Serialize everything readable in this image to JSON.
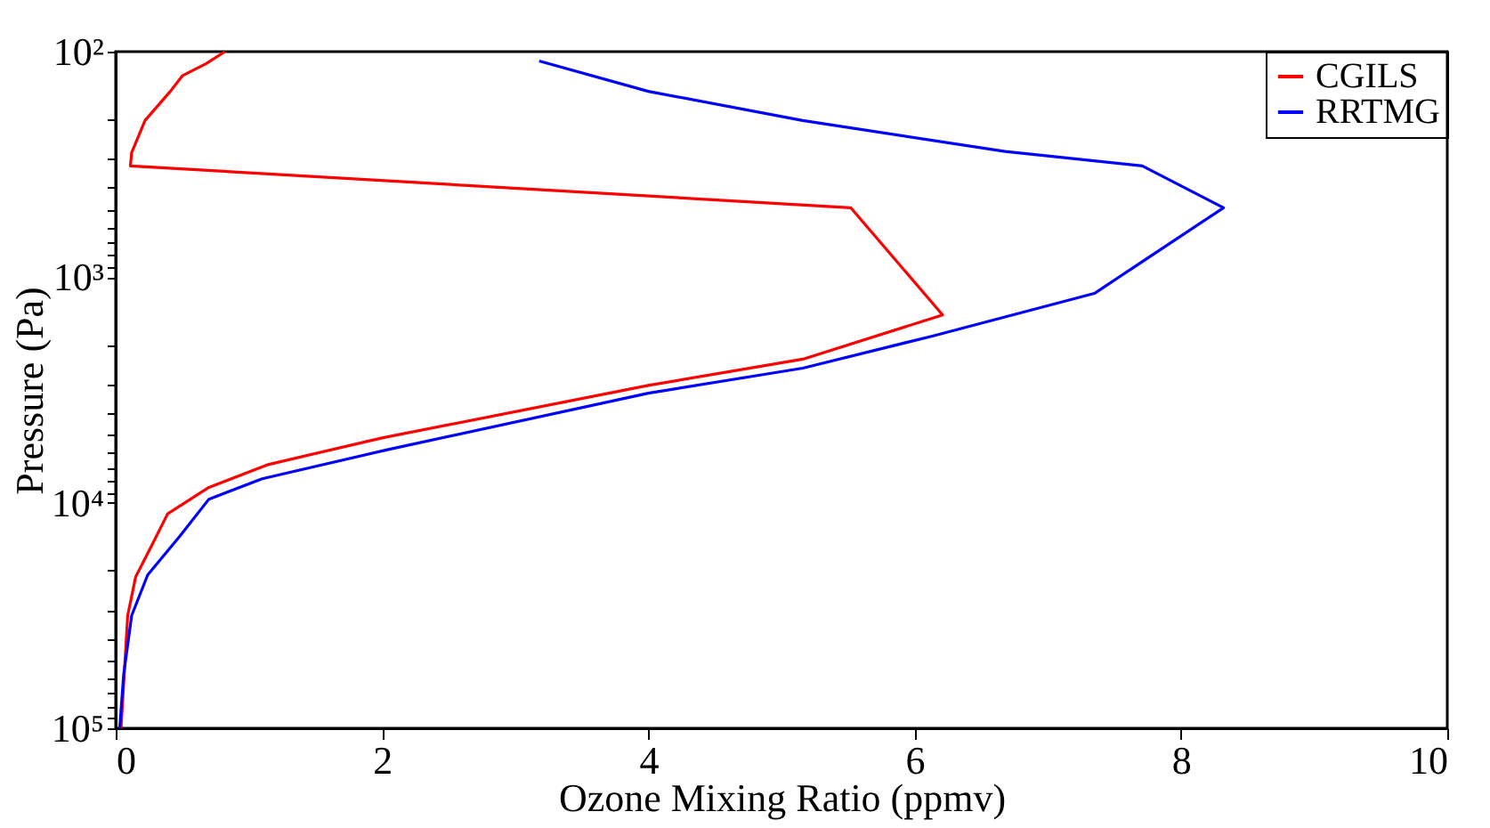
{
  "chart_data": {
    "type": "line",
    "xlabel": "Ozone Mixing Ratio (ppmv)",
    "ylabel": "Pressure (Pa)",
    "xlim": [
      0,
      10
    ],
    "xticks": [
      0,
      2,
      4,
      6,
      8,
      10
    ],
    "ylim": [
      100000,
      100
    ],
    "log": "y",
    "yticks": [
      {
        "value": 100,
        "label": "10²"
      },
      {
        "value": 200,
        "label": null
      },
      {
        "value": 300,
        "label": null
      },
      {
        "value": 400,
        "label": null
      },
      {
        "value": 500,
        "label": null
      },
      {
        "value": 600,
        "label": null
      },
      {
        "value": 700,
        "label": null
      },
      {
        "value": 800,
        "label": null
      },
      {
        "value": 900,
        "label": null
      },
      {
        "value": 1000,
        "label": "10³"
      },
      {
        "value": 2000,
        "label": null
      },
      {
        "value": 3000,
        "label": null
      },
      {
        "value": 4000,
        "label": null
      },
      {
        "value": 5000,
        "label": null
      },
      {
        "value": 6000,
        "label": null
      },
      {
        "value": 7000,
        "label": null
      },
      {
        "value": 8000,
        "label": null
      },
      {
        "value": 9000,
        "label": null
      },
      {
        "value": 10000,
        "label": "10⁴"
      },
      {
        "value": 20000,
        "label": null
      },
      {
        "value": 30000,
        "label": null
      },
      {
        "value": 40000,
        "label": null
      },
      {
        "value": 50000,
        "label": null
      },
      {
        "value": 60000,
        "label": null
      },
      {
        "value": 70000,
        "label": null
      },
      {
        "value": 80000,
        "label": null
      },
      {
        "value": 90000,
        "label": null
      },
      {
        "value": 100000,
        "label": "10⁵"
      }
    ],
    "grid": false,
    "legend": "top right",
    "line_style": "solid",
    "marker": "none",
    "series": [
      {
        "name": "CGILS",
        "color": "#ff0000",
        "x": [
          0.82,
          0.68,
          0.5,
          0.41,
          0.22,
          0.12,
          0.11,
          5.52,
          6.21,
          5.16,
          4.0,
          2.0,
          1.15,
          0.7,
          0.39,
          0.26,
          0.15,
          0.09,
          0.06,
          0.04
        ],
        "values": [
          100,
          113,
          128,
          150,
          202,
          280,
          321,
          492,
          1470,
          2310,
          3020,
          5160,
          6760,
          8550,
          11200,
          15900,
          21300,
          31600,
          null,
          100000
        ]
      },
      {
        "name": "RRTMG",
        "color": "#0000ff",
        "x": [
          3.18,
          4.0,
          5.16,
          6.68,
          7.71,
          8.32,
          7.35,
          6.14,
          5.16,
          4.0,
          2.04,
          1.1,
          0.7,
          0.48,
          0.24,
          0.12,
          0.06,
          0.03
        ],
        "values": [
          110,
          150,
          202,
          277,
          321,
          492,
          1180,
          1820,
          2530,
          3270,
          5820,
          7830,
          9640,
          14100,
          20900,
          31600,
          57500,
          100000
        ]
      }
    ]
  }
}
